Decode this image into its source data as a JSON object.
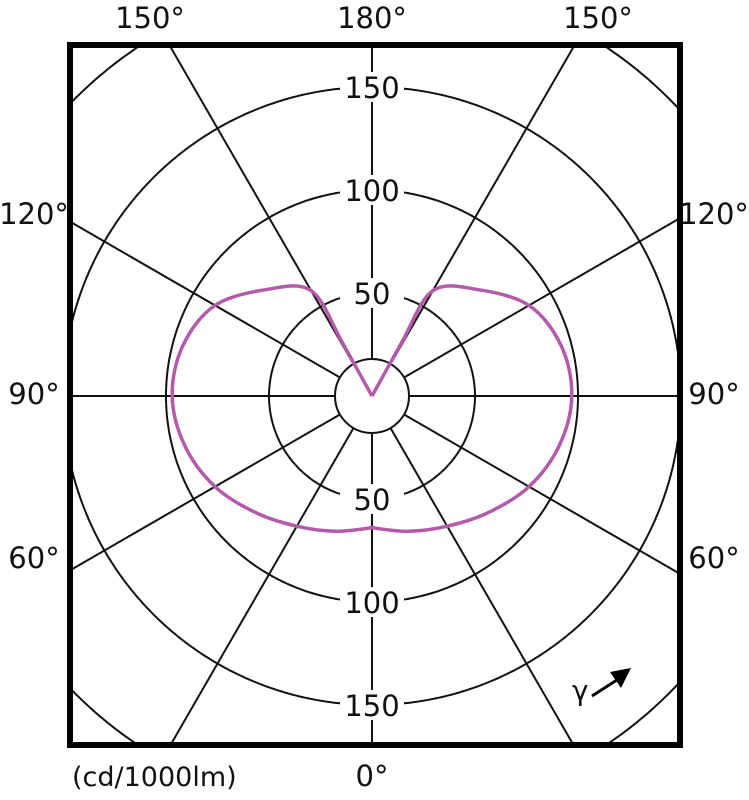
{
  "chart_data": {
    "type": "polar",
    "unit_label": "(cd/1000lm)",
    "angle_symbol": "γ",
    "radial_ticks": [
      50,
      100,
      150
    ],
    "radial_max": 150,
    "angle_labels": {
      "bottom": "0°",
      "top": "180°",
      "top_left": "150°",
      "top_right": "150°",
      "left_120": "120°",
      "right_120": "120°",
      "left_90": "90°",
      "right_90": "90°",
      "left_60": "60°",
      "right_60": "60°"
    },
    "grid_angle_step_deg": 30,
    "grid": true,
    "series": [
      {
        "color": "#b55aaa",
        "symmetric": true,
        "gamma_deg": [
          0,
          15,
          30,
          45,
          60,
          75,
          90,
          105,
          120,
          135,
          150,
          151,
          152,
          180
        ],
        "intensity": [
          64,
          68,
          73,
          80,
          88,
          94,
          97,
          95,
          88,
          73,
          59,
          30,
          0,
          0
        ]
      }
    ]
  }
}
